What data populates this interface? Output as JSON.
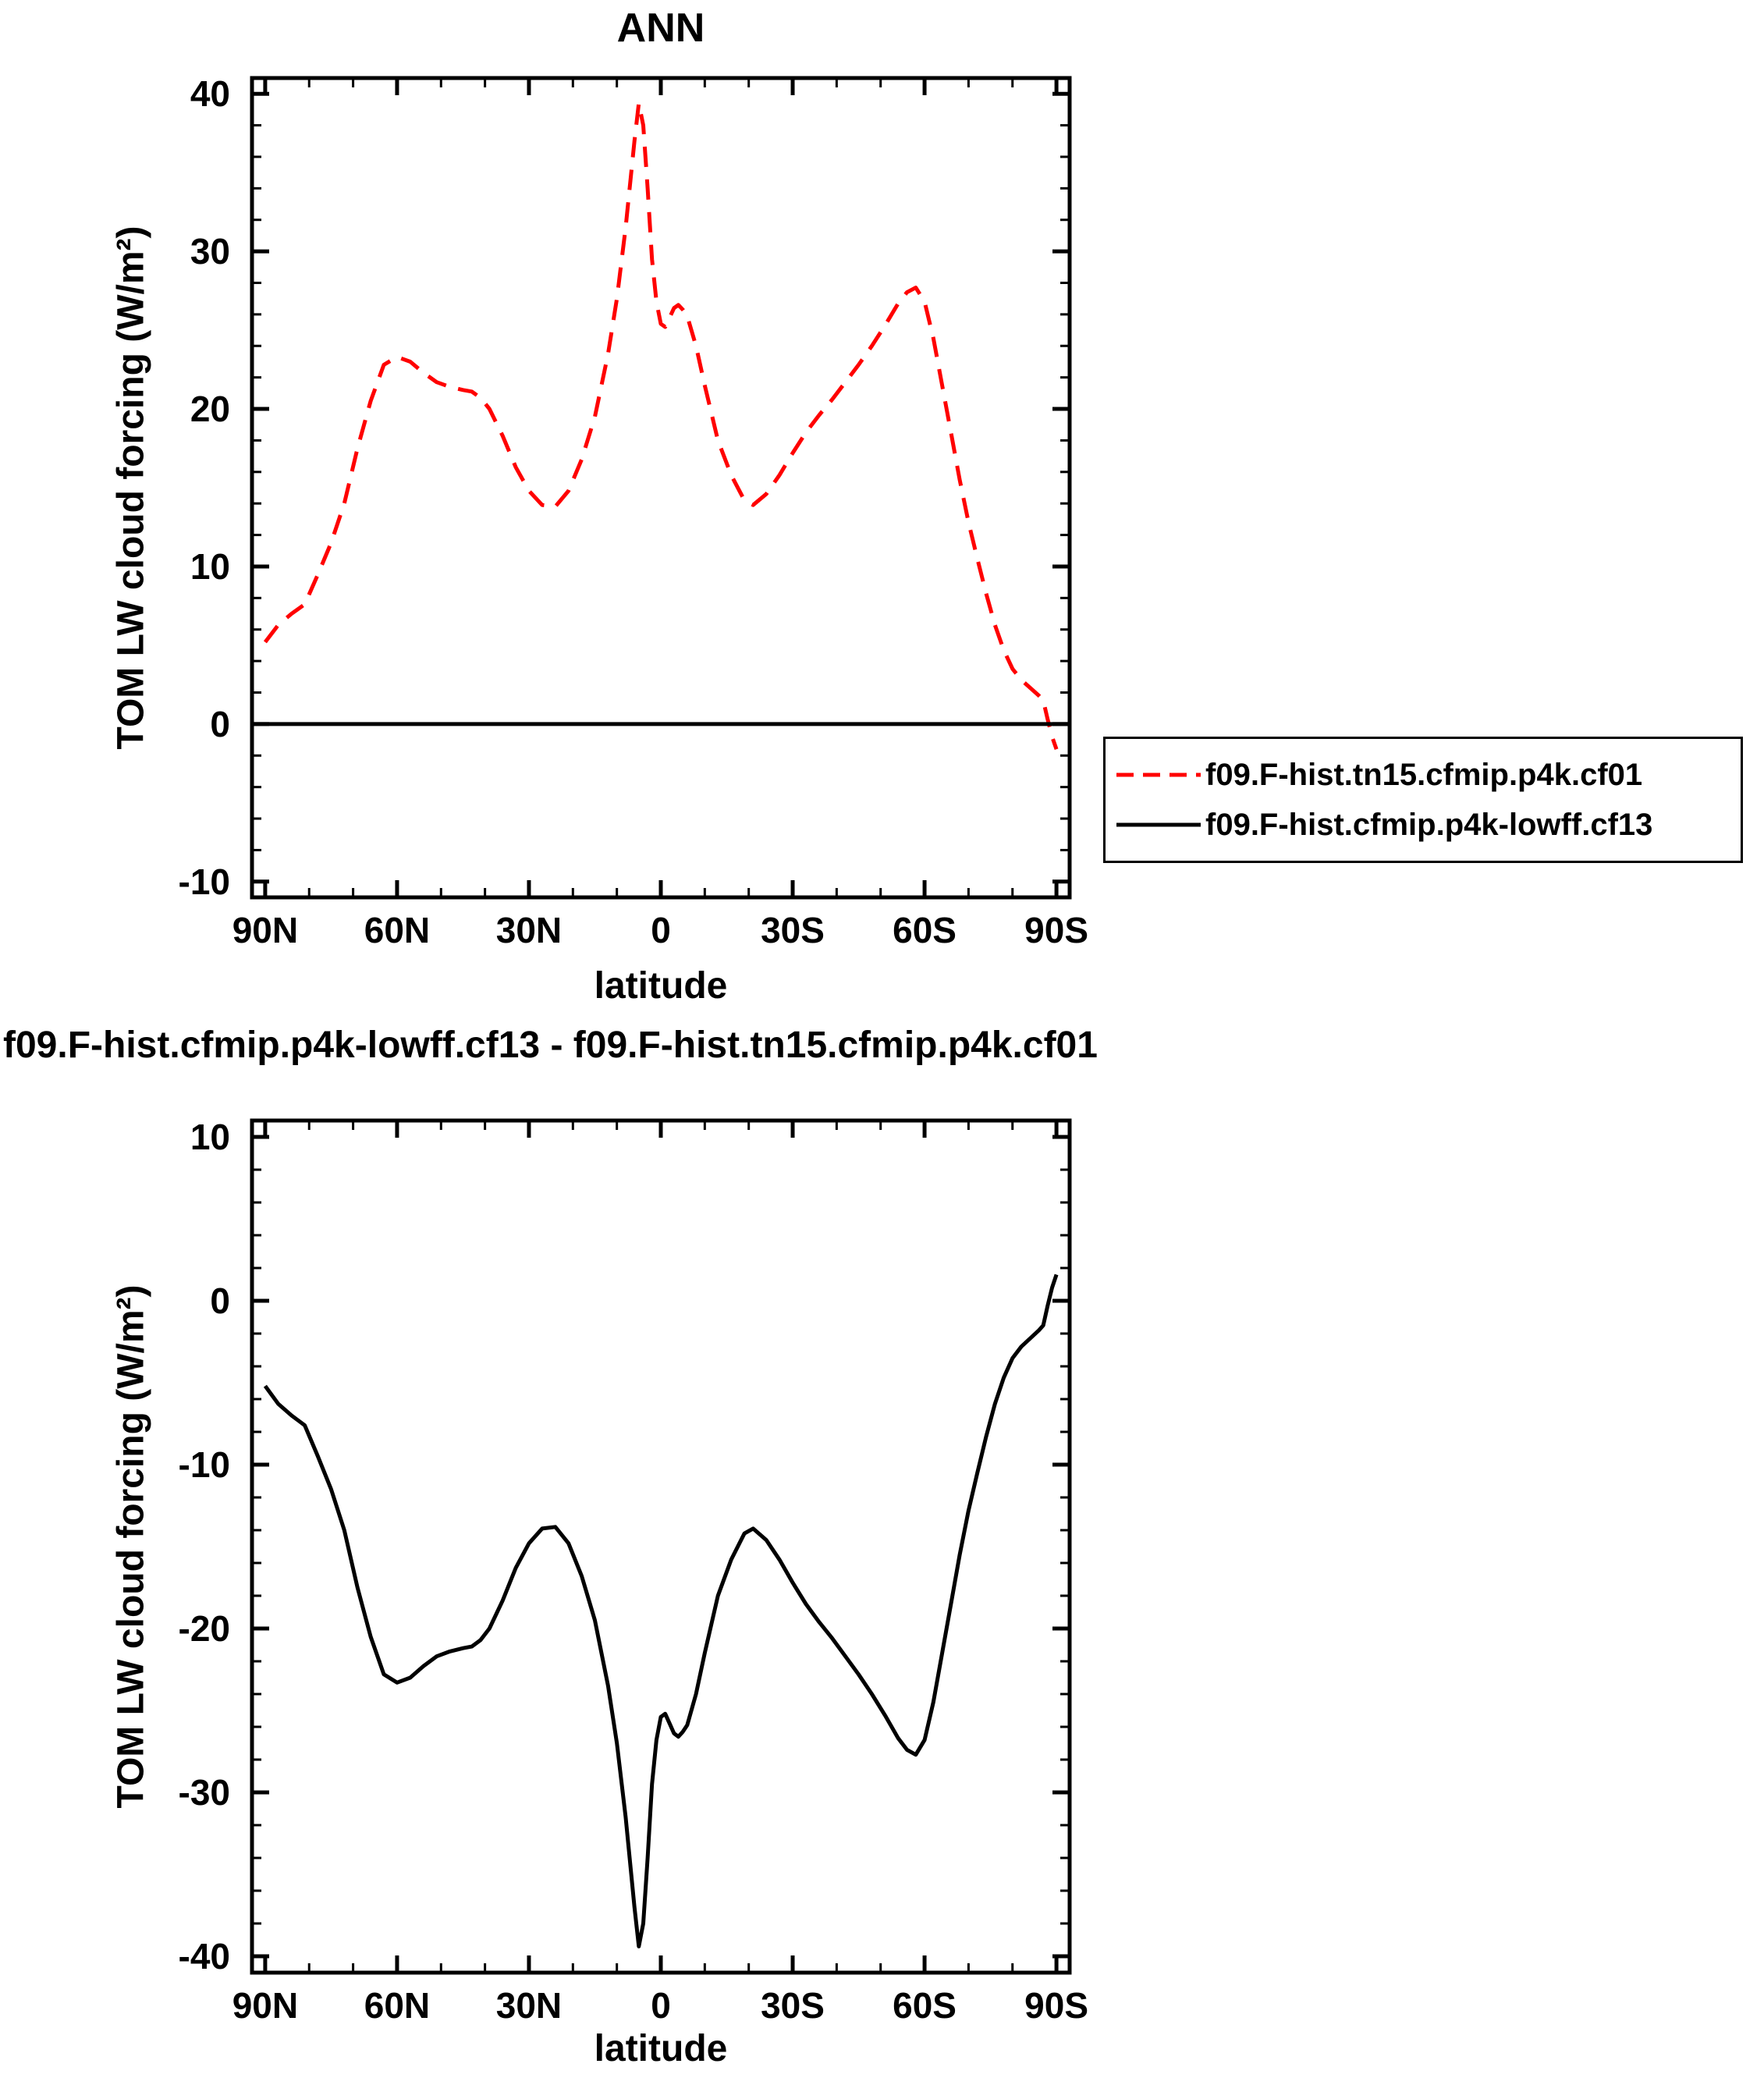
{
  "page": {
    "background": "#ffffff",
    "accent_red": "#ff0000",
    "axis_color": "#000000"
  },
  "chart_data": [
    {
      "type": "line",
      "title": "ANN",
      "xlabel": "latitude",
      "ylabel": "TOM LW cloud forcing (W/m²)",
      "xlim_draw": [
        93,
        -93
      ],
      "ylim_draw": [
        41,
        -11
      ],
      "xticks": {
        "values": [
          90,
          60,
          30,
          0,
          -30,
          -60,
          -90
        ],
        "labels": [
          "90N",
          "60N",
          "30N",
          "0",
          "30S",
          "60S",
          "90S"
        ],
        "minor_step": 10
      },
      "yticks": {
        "values": [
          40,
          30,
          20,
          10,
          0,
          -10
        ],
        "labels": [
          "40",
          "30",
          "20",
          "10",
          "0",
          "-10"
        ],
        "minor_step": 2
      },
      "grid": false,
      "legend_position": "outside-right-below",
      "series": [
        {
          "name": "f09.F-hist.tn15.cfmip.p4k.cf01",
          "color": "#ff0000",
          "line_style": "dashed",
          "x": [
            90,
            87,
            84,
            81,
            78,
            75,
            72,
            69,
            66,
            63,
            60,
            57,
            54,
            51,
            48,
            45,
            43,
            41,
            39,
            36,
            33,
            30,
            27,
            24,
            21,
            18,
            15,
            12,
            10,
            8,
            6,
            5,
            4,
            3,
            2,
            1,
            0,
            -1,
            -2,
            -3,
            -4,
            -5,
            -6,
            -8,
            -10,
            -13,
            -16,
            -19,
            -21,
            -24,
            -27,
            -30,
            -33,
            -36,
            -39,
            -42,
            -45,
            -48,
            -51,
            -54,
            -56,
            -58,
            -60,
            -62,
            -64,
            -66,
            -68,
            -70,
            -72,
            -74,
            -76,
            -78,
            -80,
            -82,
            -84,
            -86,
            -87,
            -88,
            -89,
            -90
          ],
          "y": [
            5.2,
            6.3,
            7.0,
            7.6,
            9.5,
            11.5,
            14.0,
            17.5,
            20.5,
            22.8,
            23.3,
            23.0,
            22.3,
            21.7,
            21.4,
            21.2,
            21.1,
            20.7,
            20.0,
            18.3,
            16.3,
            14.8,
            13.9,
            13.8,
            14.8,
            16.8,
            19.5,
            23.5,
            27.0,
            31.5,
            37.0,
            39.4,
            38.0,
            34.0,
            29.5,
            26.8,
            25.4,
            25.2,
            25.8,
            26.4,
            26.6,
            26.3,
            25.9,
            24.0,
            21.5,
            18.0,
            15.8,
            14.2,
            13.9,
            14.6,
            15.8,
            17.2,
            18.5,
            19.6,
            20.6,
            21.7,
            22.8,
            24.0,
            25.3,
            26.7,
            27.4,
            27.7,
            26.8,
            24.5,
            21.5,
            18.5,
            15.5,
            12.8,
            10.5,
            8.3,
            6.3,
            4.7,
            3.5,
            2.8,
            2.3,
            1.8,
            1.5,
            0.3,
            -0.8,
            -1.6
          ]
        },
        {
          "name": "f09.F-hist.cfmip.p4k-lowff.cf13",
          "color": "#000000",
          "line_style": "solid",
          "x": [
            93,
            -93
          ],
          "y": [
            0,
            0
          ]
        }
      ]
    },
    {
      "type": "line",
      "title": "f09.F-hist.cfmip.p4k-lowff.cf13 - f09.F-hist.tn15.cfmip.p4k.cf01",
      "xlabel": "latitude",
      "ylabel": "TOM LW cloud forcing (W/m²)",
      "xlim_draw": [
        93,
        -93
      ],
      "ylim_draw": [
        11,
        -41
      ],
      "xticks": {
        "values": [
          90,
          60,
          30,
          0,
          -30,
          -60,
          -90
        ],
        "labels": [
          "90N",
          "60N",
          "30N",
          "0",
          "30S",
          "60S",
          "90S"
        ],
        "minor_step": 10
      },
      "yticks": {
        "values": [
          10,
          0,
          -10,
          -20,
          -30,
          -40
        ],
        "labels": [
          "10",
          "0",
          "-10",
          "-20",
          "-30",
          "-40"
        ],
        "minor_step": 2
      },
      "grid": false,
      "legend_position": "none",
      "series": [
        {
          "name": "f09.F-hist.cfmip.p4k-lowff.cf13 - f09.F-hist.tn15.cfmip.p4k.cf01",
          "color": "#000000",
          "line_style": "solid",
          "x": [
            90,
            87,
            84,
            81,
            78,
            75,
            72,
            69,
            66,
            63,
            60,
            57,
            54,
            51,
            48,
            45,
            43,
            41,
            39,
            36,
            33,
            30,
            27,
            24,
            21,
            18,
            15,
            12,
            10,
            8,
            6,
            5,
            4,
            3,
            2,
            1,
            0,
            -1,
            -2,
            -3,
            -4,
            -5,
            -6,
            -8,
            -10,
            -13,
            -16,
            -19,
            -21,
            -24,
            -27,
            -30,
            -33,
            -36,
            -39,
            -42,
            -45,
            -48,
            -51,
            -54,
            -56,
            -58,
            -60,
            -62,
            -64,
            -66,
            -68,
            -70,
            -72,
            -74,
            -76,
            -78,
            -80,
            -82,
            -84,
            -86,
            -87,
            -88,
            -89,
            -90
          ],
          "y": [
            -5.2,
            -6.3,
            -7.0,
            -7.6,
            -9.5,
            -11.5,
            -14.0,
            -17.5,
            -20.5,
            -22.8,
            -23.3,
            -23.0,
            -22.3,
            -21.7,
            -21.4,
            -21.2,
            -21.1,
            -20.7,
            -20.0,
            -18.3,
            -16.3,
            -14.8,
            -13.9,
            -13.8,
            -14.8,
            -16.8,
            -19.5,
            -23.5,
            -27.0,
            -31.5,
            -37.0,
            -39.4,
            -38.0,
            -34.0,
            -29.5,
            -26.8,
            -25.4,
            -25.2,
            -25.8,
            -26.4,
            -26.6,
            -26.3,
            -25.9,
            -24.0,
            -21.5,
            -18.0,
            -15.8,
            -14.2,
            -13.9,
            -14.6,
            -15.8,
            -17.2,
            -18.5,
            -19.6,
            -20.6,
            -21.7,
            -22.8,
            -24.0,
            -25.3,
            -26.7,
            -27.4,
            -27.7,
            -26.8,
            -24.5,
            -21.5,
            -18.5,
            -15.5,
            -12.8,
            -10.5,
            -8.3,
            -6.3,
            -4.7,
            -3.5,
            -2.8,
            -2.3,
            -1.8,
            -1.5,
            -0.3,
            0.8,
            1.6
          ]
        }
      ]
    }
  ]
}
